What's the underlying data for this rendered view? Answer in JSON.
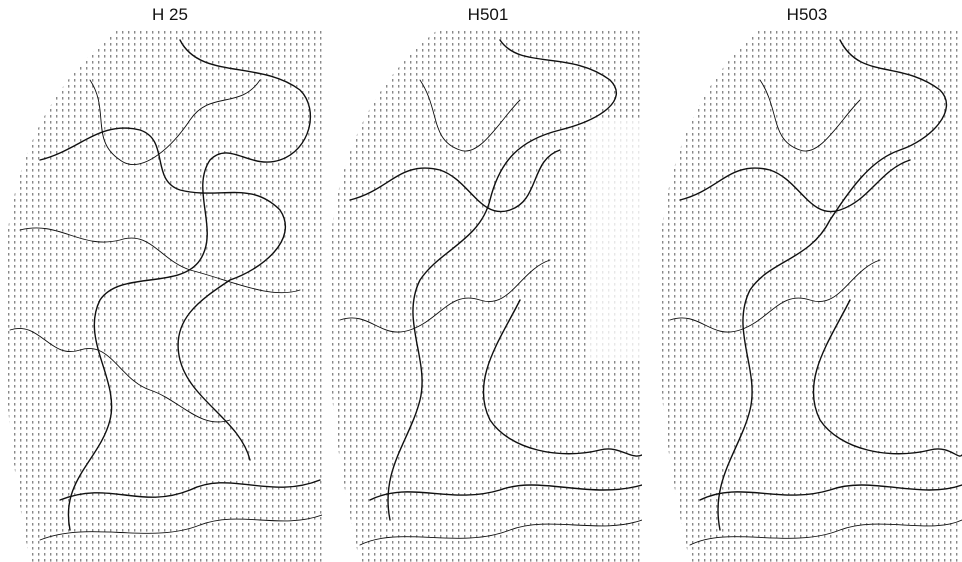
{
  "panels": [
    {
      "title": "H 25"
    },
    {
      "title": "H501"
    },
    {
      "title": "H503"
    }
  ]
}
